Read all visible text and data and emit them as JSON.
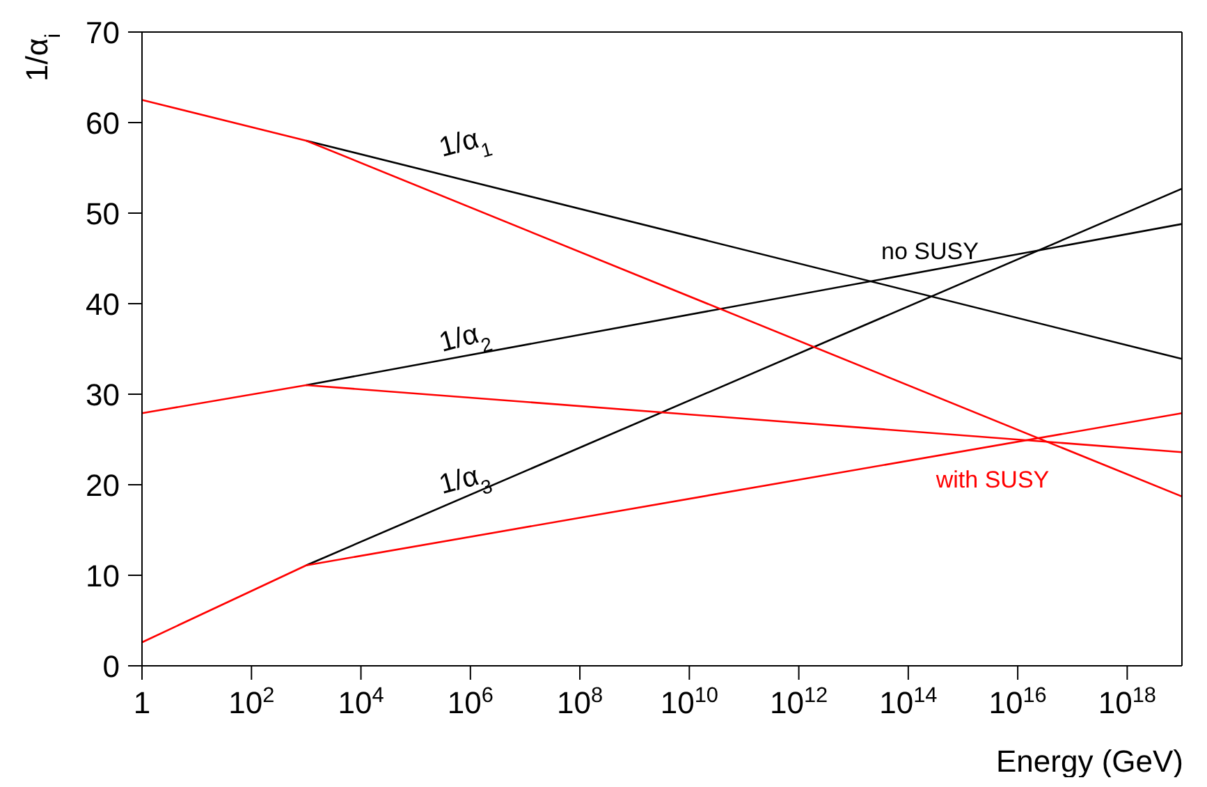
{
  "chart_data": {
    "type": "line",
    "xlabel": "Energy (GeV)",
    "ylabel": "1/α$_{i}$",
    "log": "x",
    "grid": false,
    "marker": "none",
    "line_style": "solid",
    "xlim": [
      1,
      1e+19
    ],
    "ylim": [
      0,
      70
    ],
    "xticks": [
      1,
      {
        "value": 100,
        "label": "10$^{2}$"
      },
      {
        "value": 10000,
        "label": "10$^{4}$"
      },
      {
        "value": 1000000,
        "label": "10$^{6}$"
      },
      {
        "value": 100000000,
        "label": "10$^{8}$"
      },
      {
        "value": 10000000000,
        "label": "10$^{10}$"
      },
      {
        "value": 1000000000000,
        "label": "10$^{12}$"
      },
      {
        "value": 100000000000000,
        "label": "10$^{14}$"
      },
      {
        "value": 10000000000000000,
        "label": "10$^{16}$"
      },
      {
        "value": 1000000000000000000,
        "label": "10$^{18}$"
      }
    ],
    "yticks": [
      0,
      10,
      20,
      30,
      40,
      50,
      60,
      70
    ],
    "series": [
      {
        "color": "#000000",
        "x": [
          1000,
          1e+19
        ],
        "values": [
          58.0,
          33.9
        ]
      },
      {
        "color": "#000000",
        "x": [
          1000,
          1e+19
        ],
        "values": [
          31.0,
          48.8
        ]
      },
      {
        "color": "#000000",
        "x": [
          1000,
          1e+19
        ],
        "values": [
          11.1,
          52.7
        ]
      },
      {
        "color": "#ff0000",
        "x": [
          1,
          1000,
          1e+19
        ],
        "values": [
          62.5,
          58.0,
          18.7
        ]
      },
      {
        "color": "#ff0000",
        "x": [
          1,
          1000,
          1e+19
        ],
        "values": [
          27.9,
          31.0,
          23.6
        ]
      },
      {
        "color": "#ff0000",
        "x": [
          1,
          1000,
          1e+19
        ],
        "values": [
          2.6,
          11.1,
          27.9
        ]
      }
    ],
    "annotations": [
      "1/α$_{1}$",
      "1/α$_{2}$",
      "1/α$_{3}$",
      "no SUSY",
      "with SUSY"
    ]
  }
}
